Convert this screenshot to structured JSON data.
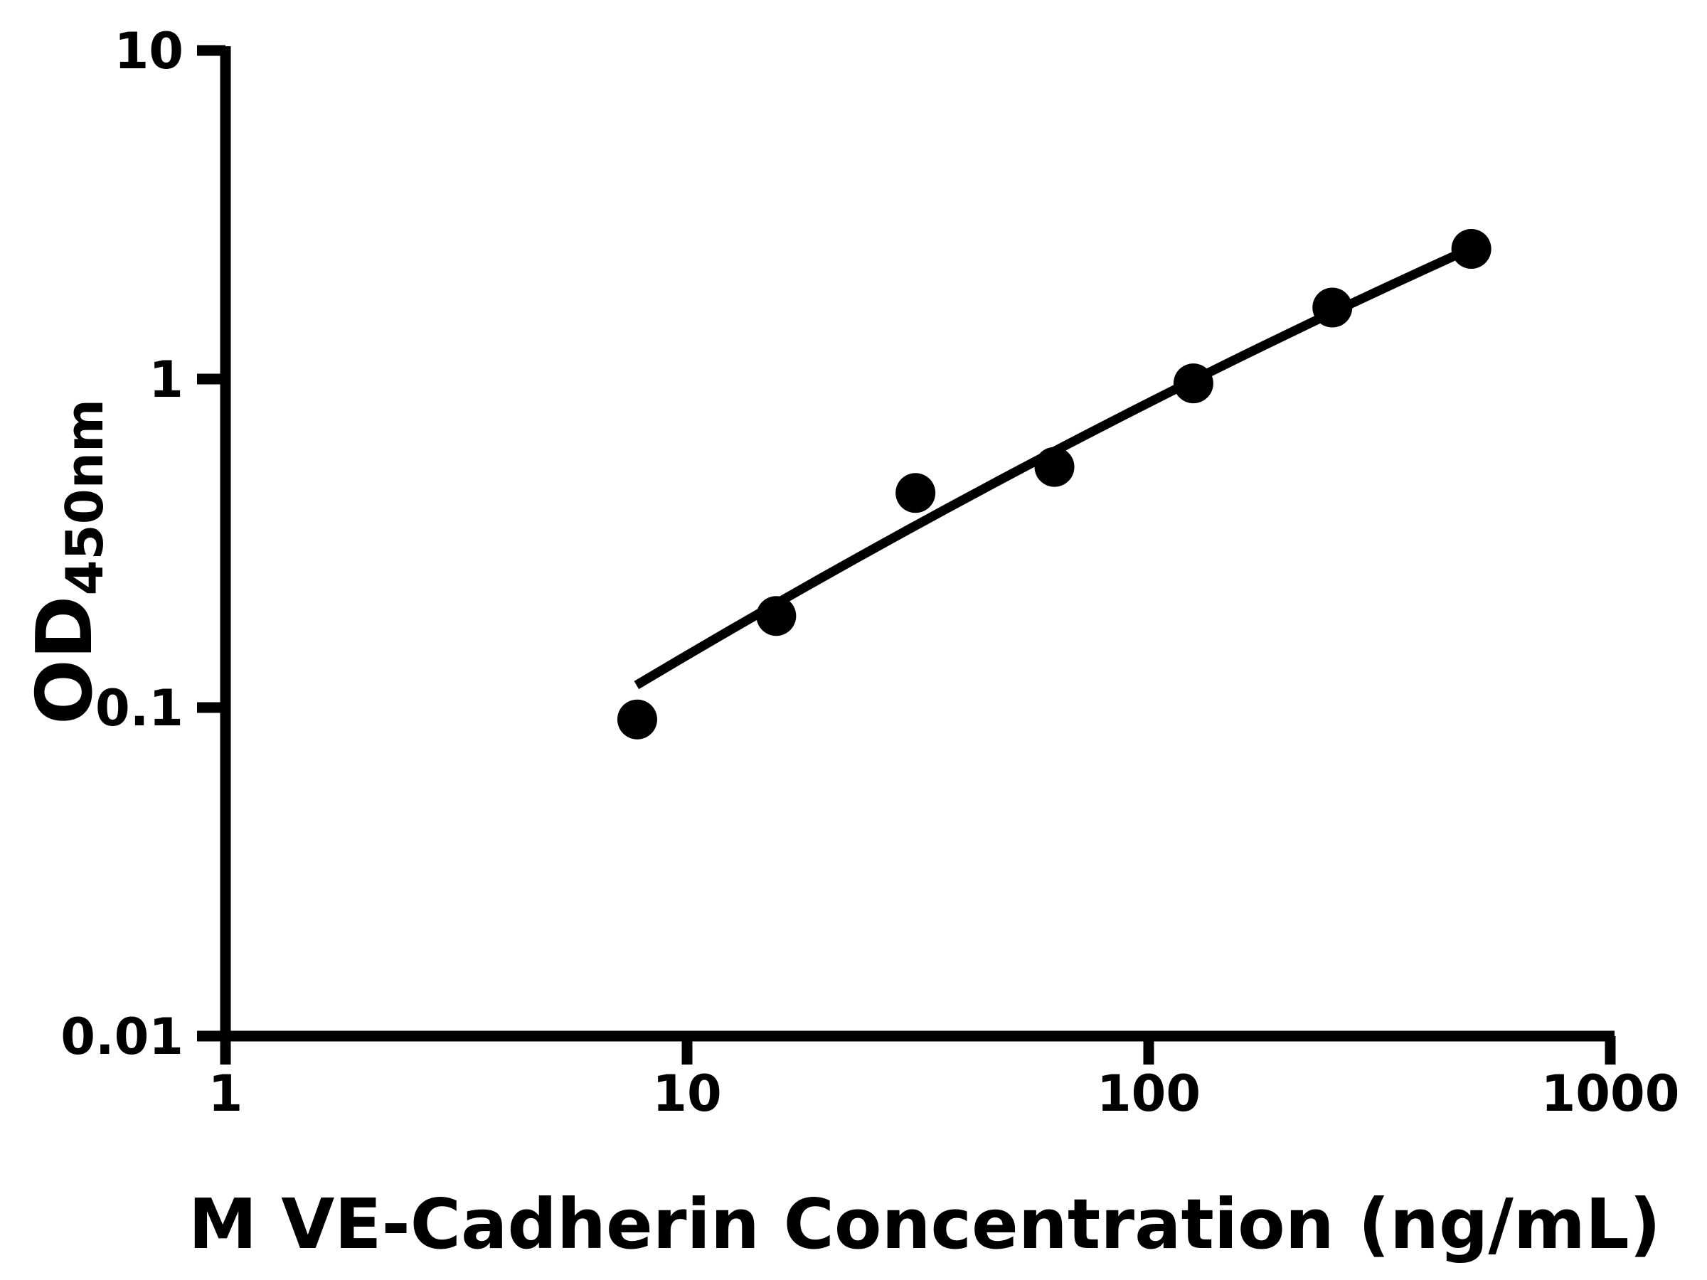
{
  "figure": {
    "background_color": "#ffffff",
    "ink_color": "#000000"
  },
  "chart_data": {
    "type": "scatter",
    "title": "",
    "xlabel": "M VE-Cadherin Concentration (ng/mL)",
    "ylabel_main": "OD",
    "ylabel_sub": "450nm",
    "x_scale": "log10",
    "y_scale": "log10",
    "xlim": [
      1,
      1000
    ],
    "ylim": [
      0.01,
      10
    ],
    "grid": false,
    "legend_position": "none",
    "x_ticks": [
      {
        "value": 1,
        "label": "1"
      },
      {
        "value": 10,
        "label": "10"
      },
      {
        "value": 100,
        "label": "100"
      },
      {
        "value": 1000,
        "label": "1000"
      }
    ],
    "y_ticks": [
      {
        "value": 0.01,
        "label": "0.01"
      },
      {
        "value": 0.1,
        "label": "0.1"
      },
      {
        "value": 1,
        "label": "1"
      },
      {
        "value": 10,
        "label": "10"
      }
    ],
    "series": [
      {
        "name": "standard-curve-points",
        "type": "scatter",
        "marker": "filled-circle",
        "color": "#000000",
        "points": [
          {
            "x": 7.8,
            "y": 0.092
          },
          {
            "x": 15.6,
            "y": 0.19
          },
          {
            "x": 31.25,
            "y": 0.45
          },
          {
            "x": 62.5,
            "y": 0.54
          },
          {
            "x": 125,
            "y": 0.97
          },
          {
            "x": 250,
            "y": 1.65
          },
          {
            "x": 500,
            "y": 2.49
          }
        ]
      },
      {
        "name": "fit-line",
        "type": "line",
        "color": "#000000",
        "start": {
          "x": 7.77,
          "y": 0.117
        },
        "control": {
          "x": 62.2,
          "y": 0.668
        },
        "end": {
          "x": 497,
          "y": 2.49
        }
      }
    ]
  }
}
